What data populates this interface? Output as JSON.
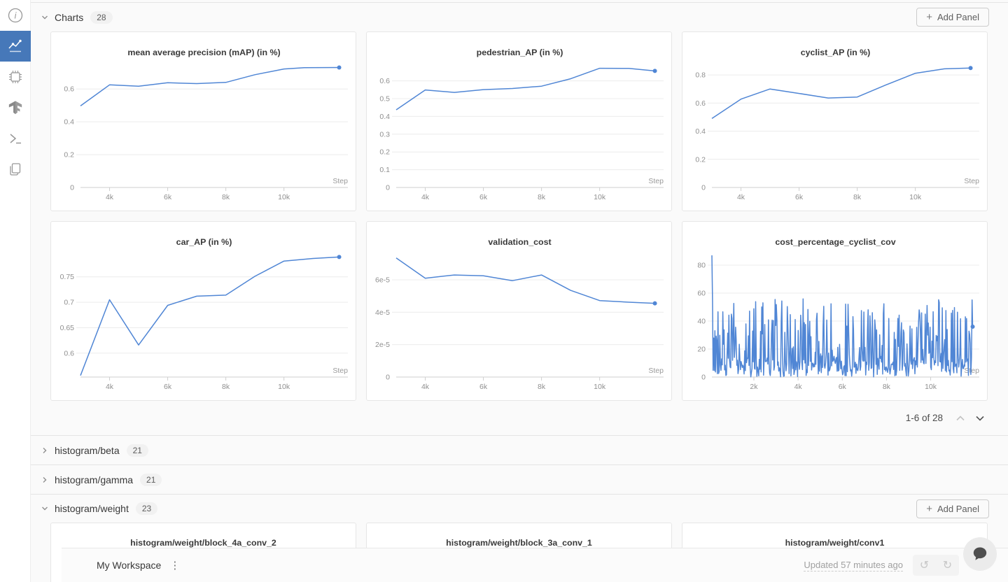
{
  "colors": {
    "line_blue": "#5086d5",
    "sidebar_active_bg": "#4678b9",
    "grid_line": "#ececec",
    "axis_line": "#cfcfcf"
  },
  "sidebar": {
    "items": [
      {
        "icon": "info-icon",
        "active": false
      },
      {
        "icon": "panels-chart-icon",
        "active": true
      },
      {
        "icon": "system-chip-icon",
        "active": false
      },
      {
        "icon": "tensorflow-icon",
        "active": false
      },
      {
        "icon": "terminal-icon",
        "active": false
      },
      {
        "icon": "files-icon",
        "active": false
      }
    ]
  },
  "header": {
    "title": "Charts",
    "count": "28",
    "add_panel_label": "Add Panel",
    "plus": "+"
  },
  "pagination": {
    "label": "1-6 of 28"
  },
  "sections": [
    {
      "title": "histogram/beta",
      "count": "21",
      "collapsed": true
    },
    {
      "title": "histogram/gamma",
      "count": "21",
      "collapsed": true
    },
    {
      "title": "histogram/weight",
      "count": "23",
      "collapsed": false,
      "add_panel_label": "Add Panel",
      "plus": "+"
    }
  ],
  "partial_panels": [
    {
      "title": "histogram/weight/block_4a_conv_2"
    },
    {
      "title": "histogram/weight/block_3a_conv_1"
    },
    {
      "title": "histogram/weight/conv1"
    }
  ],
  "footer": {
    "workspace": "My Workspace",
    "kebab": "⋮",
    "updated": "Updated 57 minutes ago",
    "undo": "↺",
    "redo": "↻"
  },
  "chart_data": [
    {
      "type": "line",
      "title": "mean average precision (mAP) (in %)",
      "xlabel": "Step",
      "x_domain": [
        3000,
        12200
      ],
      "y_domain": [
        0,
        0.75
      ],
      "x_ticks": [
        [
          4000,
          "4k"
        ],
        [
          6000,
          "6k"
        ],
        [
          8000,
          "8k"
        ],
        [
          10000,
          "10k"
        ]
      ],
      "y_ticks": [
        [
          0,
          "0"
        ],
        [
          0.2,
          "0.2"
        ],
        [
          0.4,
          "0.4"
        ],
        [
          0.6,
          "0.6"
        ]
      ],
      "points": [
        [
          3000,
          0.497
        ],
        [
          4000,
          0.625
        ],
        [
          5000,
          0.617
        ],
        [
          6000,
          0.638
        ],
        [
          7000,
          0.633
        ],
        [
          8000,
          0.64
        ],
        [
          9000,
          0.687
        ],
        [
          10000,
          0.722
        ],
        [
          10700,
          0.73
        ],
        [
          11900,
          0.731
        ]
      ],
      "end_dot": true
    },
    {
      "type": "line",
      "title": "pedestrian_AP (in %)",
      "xlabel": "Step",
      "x_domain": [
        3000,
        12200
      ],
      "y_domain": [
        0,
        0.693
      ],
      "x_ticks": [
        [
          4000,
          "4k"
        ],
        [
          6000,
          "6k"
        ],
        [
          8000,
          "8k"
        ],
        [
          10000,
          "10k"
        ]
      ],
      "y_ticks": [
        [
          0,
          "0"
        ],
        [
          0.1,
          "0.1"
        ],
        [
          0.2,
          "0.2"
        ],
        [
          0.3,
          "0.3"
        ],
        [
          0.4,
          "0.4"
        ],
        [
          0.5,
          "0.5"
        ],
        [
          0.6,
          "0.6"
        ]
      ],
      "points": [
        [
          3000,
          0.437
        ],
        [
          4000,
          0.549
        ],
        [
          5000,
          0.535
        ],
        [
          6000,
          0.551
        ],
        [
          7000,
          0.557
        ],
        [
          8000,
          0.57
        ],
        [
          9000,
          0.612
        ],
        [
          10000,
          0.671
        ],
        [
          11000,
          0.67
        ],
        [
          11900,
          0.656
        ]
      ],
      "end_dot": true
    },
    {
      "type": "line",
      "title": "cyclist_AP (in %)",
      "xlabel": "Step",
      "x_domain": [
        3000,
        12200
      ],
      "y_domain": [
        0,
        0.875
      ],
      "x_ticks": [
        [
          4000,
          "4k"
        ],
        [
          6000,
          "6k"
        ],
        [
          8000,
          "8k"
        ],
        [
          10000,
          "10k"
        ]
      ],
      "y_ticks": [
        [
          0,
          "0"
        ],
        [
          0.2,
          "0.2"
        ],
        [
          0.4,
          "0.4"
        ],
        [
          0.6,
          "0.6"
        ],
        [
          0.8,
          "0.8"
        ]
      ],
      "points": [
        [
          3000,
          0.49
        ],
        [
          4000,
          0.628
        ],
        [
          5000,
          0.7
        ],
        [
          6000,
          0.668
        ],
        [
          7000,
          0.636
        ],
        [
          8000,
          0.643
        ],
        [
          9000,
          0.73
        ],
        [
          10000,
          0.812
        ],
        [
          11000,
          0.843
        ],
        [
          11900,
          0.849
        ]
      ],
      "end_dot": true
    },
    {
      "type": "line",
      "title": "car_AP (in %)",
      "xlabel": "Step",
      "x_domain": [
        3000,
        12200
      ],
      "y_domain": [
        0.553,
        0.795
      ],
      "x_ticks": [
        [
          4000,
          "4k"
        ],
        [
          6000,
          "6k"
        ],
        [
          8000,
          "8k"
        ],
        [
          10000,
          "10k"
        ]
      ],
      "y_ticks": [
        [
          0.6,
          "0.6"
        ],
        [
          0.65,
          "0.65"
        ],
        [
          0.7,
          "0.7"
        ],
        [
          0.75,
          "0.75"
        ]
      ],
      "points": [
        [
          3000,
          0.556
        ],
        [
          4000,
          0.705
        ],
        [
          5000,
          0.616
        ],
        [
          6000,
          0.694
        ],
        [
          7000,
          0.712
        ],
        [
          8000,
          0.714
        ],
        [
          9000,
          0.751
        ],
        [
          10000,
          0.781
        ],
        [
          11000,
          0.786
        ],
        [
          11900,
          0.789
        ]
      ],
      "end_dot": true
    },
    {
      "type": "line",
      "title": "validation_cost",
      "xlabel": "Step",
      "x_domain": [
        3000,
        12200
      ],
      "y_domain": [
        0,
        7.6e-05
      ],
      "x_ticks": [
        [
          4000,
          "4k"
        ],
        [
          6000,
          "6k"
        ],
        [
          8000,
          "8k"
        ],
        [
          10000,
          "10k"
        ]
      ],
      "y_ticks": [
        [
          0,
          "0"
        ],
        [
          2e-05,
          "2e-5"
        ],
        [
          4e-05,
          "4e-5"
        ],
        [
          6e-05,
          "6e-5"
        ]
      ],
      "points": [
        [
          3000,
          7.35e-05
        ],
        [
          4000,
          6.1e-05
        ],
        [
          5000,
          6.3e-05
        ],
        [
          6000,
          6.25e-05
        ],
        [
          7000,
          5.95e-05
        ],
        [
          8000,
          6.3e-05
        ],
        [
          9000,
          5.35e-05
        ],
        [
          10000,
          4.72e-05
        ],
        [
          11000,
          4.62e-05
        ],
        [
          11900,
          4.55e-05
        ]
      ],
      "end_dot": true
    },
    {
      "type": "line",
      "title": "cost_percentage_cyclist_cov",
      "xlabel": "Step",
      "x_domain": [
        100,
        12200
      ],
      "y_domain": [
        0,
        88
      ],
      "x_ticks": [
        [
          2000,
          "2k"
        ],
        [
          4000,
          "4k"
        ],
        [
          6000,
          "6k"
        ],
        [
          8000,
          "8k"
        ],
        [
          10000,
          "10k"
        ]
      ],
      "y_ticks": [
        [
          0,
          "0"
        ],
        [
          20,
          "20"
        ],
        [
          40,
          "40"
        ],
        [
          60,
          "60"
        ],
        [
          80,
          "80"
        ]
      ],
      "noise": {
        "seed": 13,
        "n": 430,
        "x_start": 100,
        "x_end": 11900,
        "head": [
          87,
          54
        ],
        "tail": 36,
        "max": 56,
        "low_share": 0.45,
        "low_max": 14
      },
      "end_dot": true
    }
  ]
}
